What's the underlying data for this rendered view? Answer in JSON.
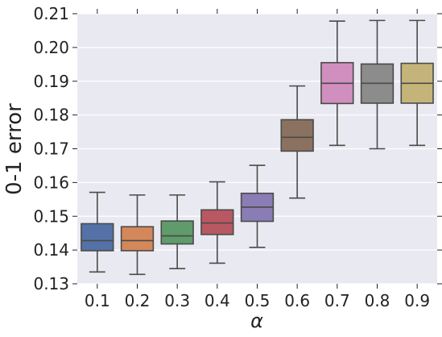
{
  "chart_data": {
    "type": "box",
    "xlabel": "α",
    "ylabel": "0-1 error",
    "ylim": [
      0.13,
      0.21
    ],
    "yticks": [
      "0.13",
      "0.14",
      "0.15",
      "0.16",
      "0.17",
      "0.18",
      "0.19",
      "0.20",
      "0.21"
    ],
    "categories": [
      "0.1",
      "0.2",
      "0.3",
      "0.4",
      "0.5",
      "0.6",
      "0.7",
      "0.8",
      "0.9"
    ],
    "grid": true,
    "background": "#e9e9f1",
    "grid_color": "#ffffff",
    "boxes": [
      {
        "category": "0.1",
        "whisker_low": 0.1335,
        "q1": 0.1398,
        "median": 0.1428,
        "q3": 0.1478,
        "whisker_high": 0.1571,
        "color": "#5472a6"
      },
      {
        "category": "0.2",
        "whisker_low": 0.1328,
        "q1": 0.1398,
        "median": 0.1428,
        "q3": 0.1469,
        "whisker_high": 0.1563,
        "color": "#d4885a"
      },
      {
        "category": "0.3",
        "whisker_low": 0.1345,
        "q1": 0.1418,
        "median": 0.1442,
        "q3": 0.1486,
        "whisker_high": 0.1563,
        "color": "#5f9b6b"
      },
      {
        "category": "0.4",
        "whisker_low": 0.1361,
        "q1": 0.1446,
        "median": 0.148,
        "q3": 0.1519,
        "whisker_high": 0.1602,
        "color": "#b95862"
      },
      {
        "category": "0.5",
        "whisker_low": 0.1408,
        "q1": 0.1485,
        "median": 0.1527,
        "q3": 0.1568,
        "whisker_high": 0.1651,
        "color": "#8a7cb5"
      },
      {
        "category": "0.6",
        "whisker_low": 0.1554,
        "q1": 0.1693,
        "median": 0.1734,
        "q3": 0.1786,
        "whisker_high": 0.1886,
        "color": "#8b7260"
      },
      {
        "category": "0.7",
        "whisker_low": 0.171,
        "q1": 0.1834,
        "median": 0.1894,
        "q3": 0.1955,
        "whisker_high": 0.2078,
        "color": "#d08fbf"
      },
      {
        "category": "0.8",
        "whisker_low": 0.17,
        "q1": 0.1835,
        "median": 0.1894,
        "q3": 0.1951,
        "whisker_high": 0.208,
        "color": "#8c8c8c"
      },
      {
        "category": "0.9",
        "whisker_low": 0.171,
        "q1": 0.1835,
        "median": 0.1894,
        "q3": 0.1953,
        "whisker_high": 0.208,
        "color": "#c5b47a"
      }
    ]
  }
}
